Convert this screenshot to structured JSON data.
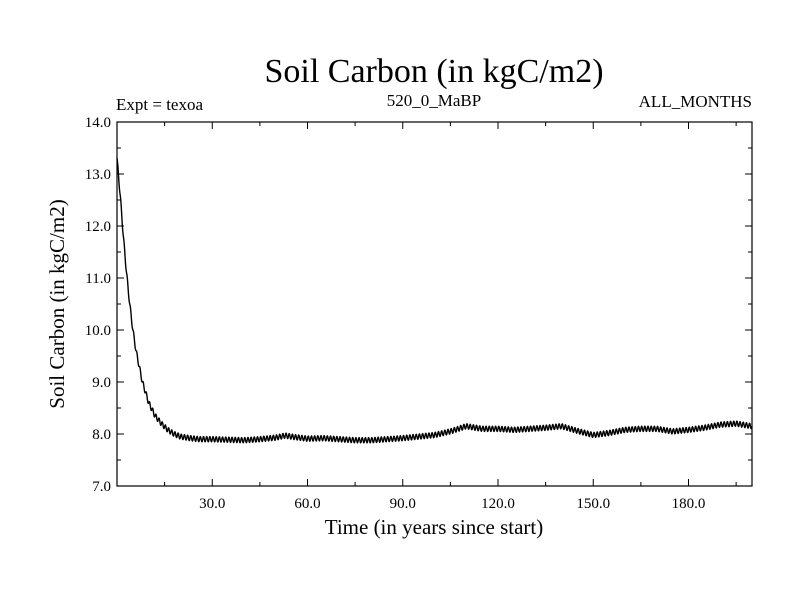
{
  "chart_data": {
    "type": "line",
    "title": "Soil Carbon (in kgC/m2)",
    "subtitle_left": "Expt = texoa",
    "subtitle_center": "520_0_MaBP",
    "subtitle_right": "ALL_MONTHS",
    "xlabel": "Time (in years since start)",
    "ylabel": "Soil Carbon (in kgC/m2)",
    "xlim": [
      0,
      200
    ],
    "ylim": [
      7.0,
      14.0
    ],
    "x_ticks": [
      30,
      60,
      90,
      120,
      150,
      180
    ],
    "x_tick_labels": [
      "30.0",
      "60.0",
      "90.0",
      "120.0",
      "150.0",
      "180.0"
    ],
    "y_ticks": [
      7,
      8,
      9,
      10,
      11,
      12,
      13,
      14
    ],
    "y_tick_labels": [
      "7.0",
      "8.0",
      "9.0",
      "10.0",
      "11.0",
      "12.0",
      "13.0",
      "14.0"
    ],
    "series": [
      {
        "name": "Soil Carbon",
        "color": "#000000",
        "seasonal_amplitude": 0.05,
        "x": [
          0,
          1,
          2,
          3,
          4,
          5,
          6,
          7,
          8,
          10,
          12,
          14,
          16,
          18,
          20,
          23,
          26,
          30,
          35,
          40,
          45,
          50,
          53,
          56,
          60,
          65,
          70,
          75,
          80,
          85,
          90,
          95,
          100,
          105,
          110,
          115,
          120,
          125,
          130,
          135,
          140,
          145,
          150,
          155,
          160,
          165,
          170,
          175,
          180,
          185,
          190,
          195,
          200
        ],
        "y": [
          13.3,
          12.6,
          11.8,
          11.1,
          10.5,
          10.0,
          9.6,
          9.3,
          9.0,
          8.6,
          8.35,
          8.2,
          8.08,
          8.0,
          7.95,
          7.92,
          7.9,
          7.9,
          7.89,
          7.88,
          7.9,
          7.93,
          7.97,
          7.94,
          7.91,
          7.92,
          7.9,
          7.88,
          7.88,
          7.9,
          7.92,
          7.95,
          7.98,
          8.05,
          8.15,
          8.1,
          8.1,
          8.08,
          8.1,
          8.12,
          8.15,
          8.06,
          7.98,
          8.02,
          8.08,
          8.1,
          8.1,
          8.05,
          8.08,
          8.12,
          8.18,
          8.2,
          8.15
        ]
      }
    ]
  }
}
